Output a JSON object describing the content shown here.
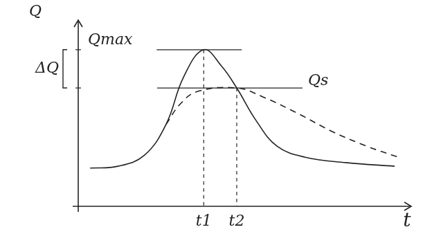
{
  "chart_data": {
    "type": "line",
    "x_label": "t",
    "y_label": "Q",
    "xlim": [
      0,
      10
    ],
    "ylim": [
      0,
      10
    ],
    "xticks": [
      {
        "value": 3.8,
        "label": "t1"
      },
      {
        "value": 4.8,
        "label": "t2"
      }
    ],
    "tick_labels": "x",
    "grid": false,
    "series": [
      {
        "color": "#222222",
        "line_style": "solid",
        "x": [
          0.36,
          1.2,
          2.0,
          2.66,
          3.19,
          3.8,
          4.34,
          4.8,
          5.39,
          6.02,
          6.86,
          8.11,
          9.58
        ],
        "values": [
          2.1,
          2.2,
          2.8,
          4.5,
          7.1,
          8.6,
          7.7,
          6.5,
          4.7,
          3.3,
          2.7,
          2.4,
          2.2
        ]
      },
      {
        "color": "#222222",
        "line_style": "dashed",
        "x": [
          2.66,
          3.08,
          3.6,
          4.8,
          5.6,
          6.65,
          7.7,
          8.74,
          9.69
        ],
        "values": [
          4.5,
          5.6,
          6.3,
          6.5,
          6.0,
          5.1,
          4.1,
          3.3,
          2.7
        ]
      }
    ],
    "levels": [
      {
        "label": "Qmax",
        "value": 8.6
      },
      {
        "label": "Qs",
        "value": 6.5
      }
    ],
    "difference_label": "ΔQ"
  }
}
